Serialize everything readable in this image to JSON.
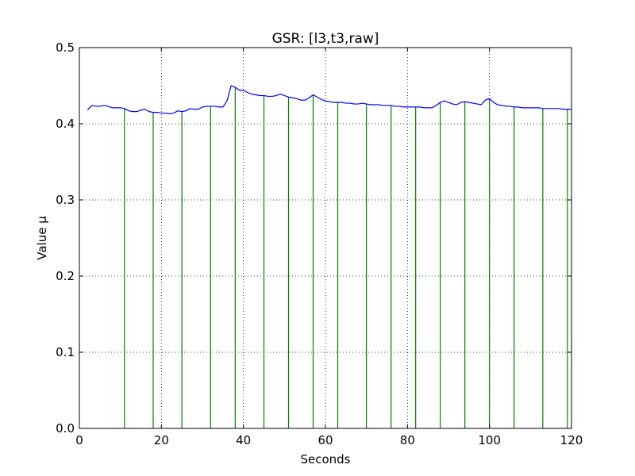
{
  "chart_data": {
    "type": "line",
    "title": "GSR: [l3,t3,raw]",
    "xlabel": "Seconds",
    "ylabel": "Value µ",
    "xlim": [
      0,
      120
    ],
    "ylim": [
      0.0,
      0.5
    ],
    "xticks": [
      "0",
      "20",
      "40",
      "60",
      "80",
      "100",
      "120"
    ],
    "yticks": [
      "0.0",
      "0.1",
      "0.2",
      "0.3",
      "0.4",
      "0.5"
    ],
    "grid": true,
    "legend": "none",
    "series": [
      {
        "type": "line",
        "color": "#0000ff",
        "x": [
          2,
          3,
          4,
          5,
          6,
          7,
          8,
          9,
          10,
          11,
          12,
          13,
          14,
          15,
          16,
          17,
          18,
          19,
          20,
          21,
          22,
          23,
          24,
          25,
          26,
          27,
          28,
          29,
          30,
          31,
          32,
          33,
          34,
          35,
          36,
          37,
          38,
          39,
          40,
          41,
          42,
          43,
          44,
          45,
          46,
          47,
          48,
          49,
          50,
          51,
          52,
          53,
          54,
          55,
          56,
          57,
          58,
          59,
          60,
          61,
          62,
          63,
          64,
          65,
          66,
          67,
          68,
          69,
          70,
          71,
          72,
          73,
          74,
          75,
          76,
          77,
          78,
          79,
          80,
          81,
          82,
          83,
          84,
          85,
          86,
          87,
          88,
          89,
          90,
          91,
          92,
          93,
          94,
          95,
          96,
          97,
          98,
          99,
          100,
          101,
          102,
          103,
          104,
          105,
          106,
          107,
          108,
          109,
          110,
          111,
          112,
          113,
          114,
          115,
          116,
          117,
          118,
          119,
          120
        ],
        "y": [
          0.418,
          0.424,
          0.423,
          0.423,
          0.424,
          0.423,
          0.421,
          0.421,
          0.421,
          0.42,
          0.417,
          0.416,
          0.416,
          0.418,
          0.419,
          0.416,
          0.415,
          0.415,
          0.414,
          0.414,
          0.413,
          0.414,
          0.417,
          0.416,
          0.417,
          0.42,
          0.419,
          0.419,
          0.422,
          0.423,
          0.423,
          0.423,
          0.422,
          0.422,
          0.43,
          0.45,
          0.448,
          0.444,
          0.444,
          0.441,
          0.439,
          0.438,
          0.437,
          0.437,
          0.436,
          0.436,
          0.437,
          0.439,
          0.437,
          0.435,
          0.434,
          0.433,
          0.431,
          0.431,
          0.434,
          0.438,
          0.435,
          0.432,
          0.43,
          0.429,
          0.428,
          0.428,
          0.428,
          0.427,
          0.427,
          0.426,
          0.426,
          0.427,
          0.426,
          0.425,
          0.425,
          0.425,
          0.424,
          0.424,
          0.424,
          0.423,
          0.423,
          0.422,
          0.422,
          0.422,
          0.422,
          0.422,
          0.421,
          0.421,
          0.421,
          0.424,
          0.428,
          0.43,
          0.428,
          0.426,
          0.425,
          0.428,
          0.429,
          0.428,
          0.427,
          0.426,
          0.425,
          0.431,
          0.433,
          0.428,
          0.425,
          0.424,
          0.423,
          0.423,
          0.422,
          0.422,
          0.421,
          0.421,
          0.421,
          0.421,
          0.421,
          0.42,
          0.42,
          0.42,
          0.42,
          0.42,
          0.419,
          0.419,
          0.419
        ]
      },
      {
        "type": "stem",
        "color": "#008000",
        "x": [
          11,
          18,
          25,
          32,
          38,
          45,
          51,
          57,
          63,
          70,
          76,
          82,
          88,
          94,
          100,
          106,
          113,
          119
        ]
      }
    ]
  }
}
